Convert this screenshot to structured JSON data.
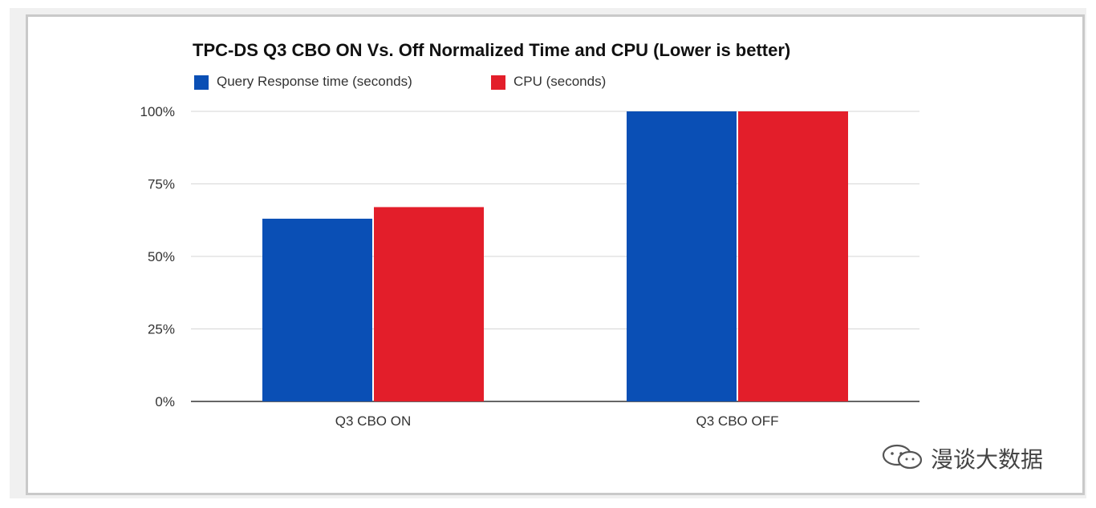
{
  "chart_data": {
    "type": "bar",
    "title": "TPC-DS Q3 CBO ON Vs. Off Normalized Time and CPU (Lower is better)",
    "categories": [
      "Q3 CBO ON",
      "Q3 CBO OFF"
    ],
    "series": [
      {
        "name": "Query Response time (seconds)",
        "values": [
          63,
          100
        ],
        "color": "#0a4fb5"
      },
      {
        "name": "CPU (seconds)",
        "values": [
          67,
          100
        ],
        "color": "#e31e2a"
      }
    ],
    "ylim": [
      0,
      100
    ],
    "yticks": [
      0,
      25,
      50,
      75,
      100
    ],
    "ytick_labels": [
      "0%",
      "25%",
      "50%",
      "75%",
      "100%"
    ],
    "grid": true,
    "legend_position": "top-left"
  },
  "watermark": {
    "text": "漫谈大数据",
    "icon": "wechat-logo-icon"
  }
}
